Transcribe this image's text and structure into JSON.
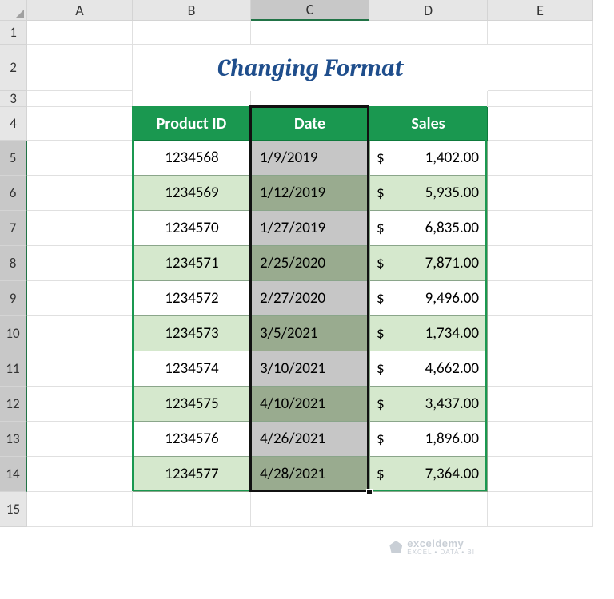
{
  "columns": [
    "A",
    "B",
    "C",
    "D",
    "E"
  ],
  "rowNumbers": [
    1,
    2,
    3,
    4,
    5,
    6,
    7,
    8,
    9,
    10,
    11,
    12,
    13,
    14,
    15
  ],
  "title": "Changing Format",
  "tableHeaders": {
    "pid": "Product ID",
    "date": "Date",
    "sales": "Sales"
  },
  "rows": [
    {
      "pid": "1234568",
      "date": "1/9/2019",
      "cur": "$",
      "amt": "1,402.00"
    },
    {
      "pid": "1234569",
      "date": "1/12/2019",
      "cur": "$",
      "amt": "5,935.00"
    },
    {
      "pid": "1234570",
      "date": "1/27/2019",
      "cur": "$",
      "amt": "6,835.00"
    },
    {
      "pid": "1234571",
      "date": "2/25/2020",
      "cur": "$",
      "amt": "7,871.00"
    },
    {
      "pid": "1234572",
      "date": "2/27/2020",
      "cur": "$",
      "amt": "9,496.00"
    },
    {
      "pid": "1234573",
      "date": "3/5/2021",
      "cur": "$",
      "amt": "1,734.00"
    },
    {
      "pid": "1234574",
      "date": "3/10/2021",
      "cur": "$",
      "amt": "4,662.00"
    },
    {
      "pid": "1234575",
      "date": "4/10/2021",
      "cur": "$",
      "amt": "3,437.00"
    },
    {
      "pid": "1234576",
      "date": "4/26/2021",
      "cur": "$",
      "amt": "1,896.00"
    },
    {
      "pid": "1234577",
      "date": "4/28/2021",
      "cur": "$",
      "amt": "7,364.00"
    }
  ],
  "watermark": {
    "name": "exceldemy",
    "tag": "EXCEL • DATA • BI"
  },
  "colors": {
    "headerGreen": "#1a9850",
    "titleBlue": "#1f4e8c",
    "evenRow": "#d5e8cd",
    "selOdd": "#c6c6c6",
    "selEven": "#99ab8f"
  },
  "activeColumn": "C",
  "selectedRows": [
    5,
    6,
    7,
    8,
    9,
    10,
    11,
    12,
    13,
    14
  ],
  "layout": {
    "rowHeaderW": 34,
    "colWidths": {
      "A": 132,
      "B": 148,
      "C": 148,
      "D": 148,
      "E": 132
    },
    "rowHeights": {
      "hdr": 26,
      "1": 30,
      "2": 58,
      "3": 20,
      "4": 42,
      "data": 44,
      "15": 44
    }
  }
}
